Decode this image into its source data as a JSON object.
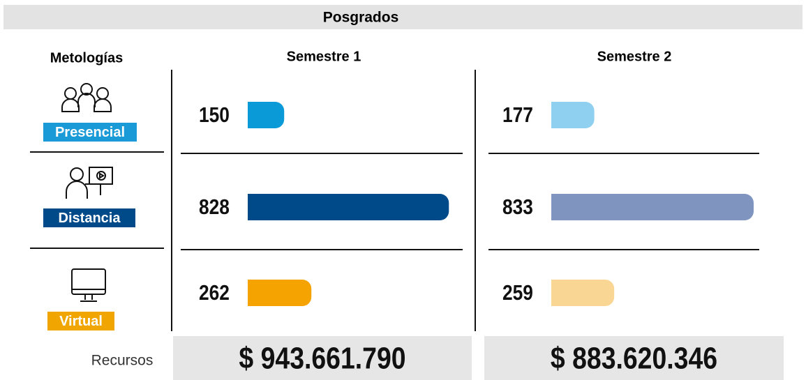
{
  "header": {
    "title": "Posgrados"
  },
  "column_header": "Metologías",
  "methods": [
    {
      "label": "Presencial",
      "color": "#1a9ad6"
    },
    {
      "label": "Distancia",
      "color": "#004a8a"
    },
    {
      "label": "Virtual",
      "color": "#f0a500"
    }
  ],
  "semesters": [
    {
      "name": "Semestre 1",
      "values": [
        150,
        828,
        262
      ],
      "colors": [
        "#0a9ad8",
        "#004a8a",
        "#f4a300"
      ],
      "resources": "$ 943.661.790"
    },
    {
      "name": "Semestre 2",
      "values": [
        177,
        833,
        259
      ],
      "colors": [
        "#8fcff0",
        "#7f95c0",
        "#fad694"
      ],
      "resources": "$ 883.620.346"
    }
  ],
  "resources_label": "Recursos"
}
